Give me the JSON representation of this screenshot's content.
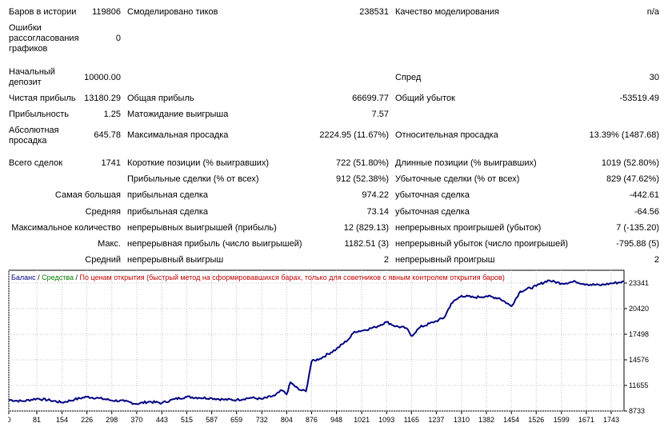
{
  "report": {
    "bars_in_history_label": "Баров в истории",
    "bars_in_history_value": "119806",
    "modeled_ticks_label": "Смоделировано тиков",
    "modeled_ticks_value": "238531",
    "modeling_quality_label": "Качество моделирования",
    "modeling_quality_value": "n/a",
    "mismatch_label": "Ошибки рассогласования графиков",
    "mismatch_value": "0",
    "initial_deposit_label": "Начальный депозит",
    "initial_deposit_value": "10000.00",
    "spread_label": "Спред",
    "spread_value": "30",
    "net_profit_label": "Чистая прибыль",
    "net_profit_value": "13180.29",
    "gross_profit_label": "Общая прибыль",
    "gross_profit_value": "66699.77",
    "gross_loss_label": "Общий убыток",
    "gross_loss_value": "-53519.49",
    "profit_factor_label": "Прибыльность",
    "profit_factor_value": "1.25",
    "expected_payoff_label": "Матожидание выигрыша",
    "expected_payoff_value": "7.57",
    "abs_drawdown_label": "Абсолютная просадка",
    "abs_drawdown_value": "645.78",
    "max_drawdown_label": "Максимальная просадка",
    "max_drawdown_value": "2224.95 (11.67%)",
    "rel_drawdown_label": "Относительная просадка",
    "rel_drawdown_value": "13.39% (1487.68)",
    "total_trades_label": "Всего сделок",
    "total_trades_value": "1741",
    "short_positions_label": "Короткие позиции (% выигравших)",
    "short_positions_value": "722 (51.80%)",
    "long_positions_label": "Длинные позиции (% выигравших)",
    "long_positions_value": "1019 (52.80%)",
    "profit_trades_label": "Прибыльные сделки (% от всех)",
    "profit_trades_value": "912 (52.38%)",
    "loss_trades_label": "Убыточные сделки (% от всех)",
    "loss_trades_value": "829 (47.62%)",
    "largest_label": "Самая большая",
    "largest_profit_label": "прибыльная сделка",
    "largest_profit_value": "974.22",
    "largest_loss_label": "убыточная сделка",
    "largest_loss_value": "-442.61",
    "average_label": "Средняя",
    "average_profit_label": "прибыльная сделка",
    "average_profit_value": "73.14",
    "average_loss_label": "убыточная сделка",
    "average_loss_value": "-64.56",
    "max_count_label": "Максимальное количество",
    "max_cons_wins_label": "непрерывных выигрышей (прибыль)",
    "max_cons_wins_value": "12 (829.13)",
    "max_cons_losses_label": "непрерывных проигрышей (убыток)",
    "max_cons_losses_value": "7 (-135.20)",
    "max_label": "Макс.",
    "max_cons_profit_label": "непрерывная прибыль (число выигрышей)",
    "max_cons_profit_value": "1182.51 (3)",
    "max_cons_loss_label": "непрерывный убыток (число проигрышей)",
    "max_cons_loss_value": "-795.88 (5)",
    "avg_label": "Средний",
    "avg_cons_wins_label": "непрерывный выигрыш",
    "avg_cons_wins_value": "2",
    "avg_cons_losses_label": "непрерывный проигрыш",
    "avg_cons_losses_value": "2"
  },
  "chart_data": {
    "type": "line",
    "legend": {
      "balance": "Баланс",
      "sep1": " / ",
      "equity": "Средства",
      "sep2": " / ",
      "mode": "По ценам открытия (быстрый метод на сформировавшихся барах, только для советников с явным контролем открытия баров)"
    },
    "colors": {
      "balance": "#000080",
      "equity": "#008000",
      "mode": "#c00000",
      "grid": "#c0c0c0"
    },
    "grid": true,
    "x_ticks": [
      "0",
      "81",
      "154",
      "226",
      "298",
      "370",
      "443",
      "515",
      "587",
      "659",
      "732",
      "804",
      "876",
      "948",
      "1021",
      "1093",
      "1165",
      "1237",
      "1310",
      "1382",
      "1454",
      "1526",
      "1599",
      "1671",
      "1743"
    ],
    "y_ticks": [
      "23341",
      "20420",
      "17498",
      "14576",
      "11655",
      "8733"
    ],
    "xlim": [
      0,
      1780
    ],
    "ylim": [
      8733,
      24800
    ],
    "series": [
      {
        "name": "Баланс",
        "points": [
          [
            0,
            10000
          ],
          [
            40,
            9850
          ],
          [
            81,
            10150
          ],
          [
            120,
            9950
          ],
          [
            154,
            9700
          ],
          [
            190,
            10050
          ],
          [
            226,
            10350
          ],
          [
            260,
            10200
          ],
          [
            298,
            9950
          ],
          [
            335,
            9850
          ],
          [
            370,
            9550
          ],
          [
            405,
            9800
          ],
          [
            443,
            9650
          ],
          [
            480,
            10100
          ],
          [
            515,
            10350
          ],
          [
            550,
            10250
          ],
          [
            587,
            10200
          ],
          [
            620,
            10050
          ],
          [
            659,
            10000
          ],
          [
            700,
            10250
          ],
          [
            732,
            10100
          ],
          [
            770,
            10500
          ],
          [
            790,
            11100
          ],
          [
            804,
            10650
          ],
          [
            815,
            12000
          ],
          [
            840,
            11150
          ],
          [
            860,
            11000
          ],
          [
            876,
            14400
          ],
          [
            900,
            14700
          ],
          [
            948,
            15800
          ],
          [
            985,
            17000
          ],
          [
            1000,
            17800
          ],
          [
            1021,
            17900
          ],
          [
            1060,
            18300
          ],
          [
            1093,
            18900
          ],
          [
            1120,
            18400
          ],
          [
            1150,
            18200
          ],
          [
            1165,
            17300
          ],
          [
            1190,
            18300
          ],
          [
            1237,
            19000
          ],
          [
            1260,
            19400
          ],
          [
            1280,
            21000
          ],
          [
            1310,
            21900
          ],
          [
            1345,
            21700
          ],
          [
            1382,
            21850
          ],
          [
            1420,
            21600
          ],
          [
            1454,
            20700
          ],
          [
            1480,
            22400
          ],
          [
            1526,
            23000
          ],
          [
            1560,
            23650
          ],
          [
            1599,
            23300
          ],
          [
            1640,
            23500
          ],
          [
            1671,
            23200
          ],
          [
            1710,
            23100
          ],
          [
            1743,
            23300
          ],
          [
            1780,
            23500
          ]
        ]
      }
    ]
  }
}
